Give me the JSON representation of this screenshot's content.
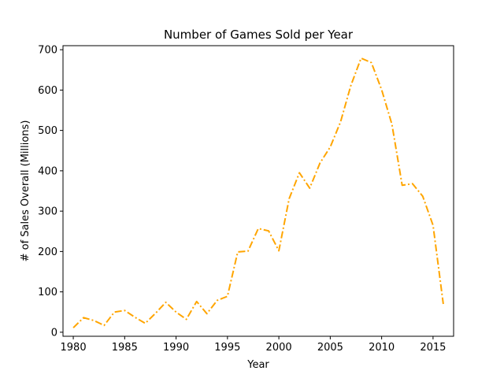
{
  "chart_data": {
    "type": "line",
    "title": "Number of Games Sold per Year",
    "xlabel": "Year",
    "ylabel": "# of Sales Overall (Millions)",
    "xlim": [
      1979,
      2017
    ],
    "ylim": [
      -10,
      710
    ],
    "xticks": [
      1980,
      1985,
      1990,
      1995,
      2000,
      2005,
      2010,
      2015
    ],
    "yticks": [
      0,
      100,
      200,
      300,
      400,
      500,
      600,
      700
    ],
    "grid": false,
    "line_style": "dash-dot",
    "series": [
      {
        "color": "#ffa500",
        "x": [
          1980,
          1981,
          1982,
          1983,
          1984,
          1985,
          1986,
          1987,
          1988,
          1989,
          1990,
          1991,
          1992,
          1993,
          1994,
          1995,
          1996,
          1997,
          1998,
          1999,
          2000,
          2001,
          2002,
          2003,
          2004,
          2005,
          2006,
          2007,
          2008,
          2009,
          2010,
          2011,
          2012,
          2013,
          2014,
          2015,
          2016
        ],
        "y": [
          11,
          36,
          29,
          17,
          50,
          54,
          37,
          22,
          47,
          74,
          50,
          32,
          76,
          46,
          79,
          89,
          199,
          201,
          257,
          251,
          202,
          331,
          395,
          357,
          419,
          459,
          521,
          611,
          679,
          668,
          601,
          515,
          364,
          368,
          337,
          265,
          70
        ]
      }
    ]
  }
}
